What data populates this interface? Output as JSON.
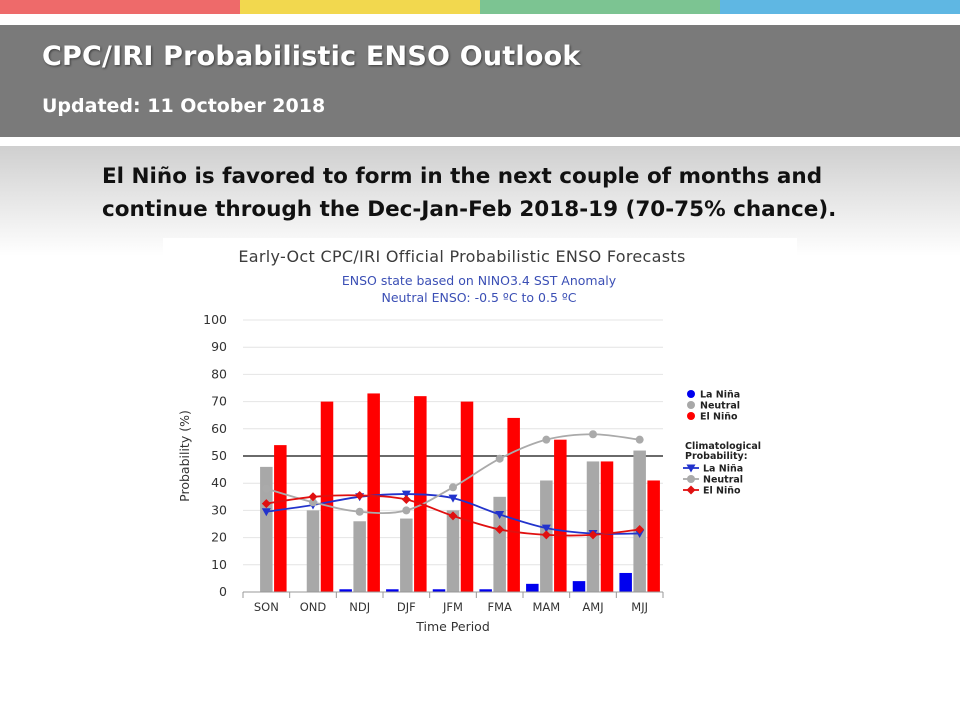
{
  "colors": {
    "stripes": [
      "#ee6a6a",
      "#f2d84e",
      "#7cc492",
      "#5fb7e3"
    ],
    "header_bg": "#7a7a7a",
    "la_nina": "#0000ee",
    "neutral": "#a8a8a8",
    "el_nino": "#ff0000",
    "la_nina_line": "#2233cc",
    "neutral_line": "#aaaaaa",
    "el_nino_line": "#e01010"
  },
  "header": {
    "title": "CPC/IRI Probabilistic ENSO Outlook",
    "updated": "Updated: 11 October 2018"
  },
  "headline": "El Niño is favored to form in the next couple of months and continue through the Dec-Jan-Feb 2018-19 (70-75% chance).",
  "chart_data": {
    "type": "bar",
    "title": "Early-Oct CPC/IRI Official Probabilistic ENSO Forecasts",
    "subtitle": [
      "ENSO state based on NINO3.4 SST Anomaly",
      "Neutral ENSO: -0.5 ºC to 0.5 ºC"
    ],
    "xlabel": "Time Period",
    "ylabel": "Probability (%)",
    "ylim": [
      0,
      100
    ],
    "yticks": [
      0,
      10,
      20,
      30,
      40,
      50,
      60,
      70,
      80,
      90,
      100
    ],
    "reference_line": 50,
    "grid": true,
    "categories": [
      "SON",
      "OND",
      "NDJ",
      "DJF",
      "JFM",
      "FMA",
      "MAM",
      "AMJ",
      "MJJ"
    ],
    "series": [
      {
        "name": "La Niña",
        "values": [
          0,
          0,
          1,
          1,
          1,
          1,
          3,
          4,
          7
        ]
      },
      {
        "name": "Neutral",
        "values": [
          46,
          30,
          26,
          27,
          30,
          35,
          41,
          48,
          52
        ]
      },
      {
        "name": "El Niño",
        "values": [
          54,
          70,
          73,
          72,
          70,
          64,
          56,
          48,
          41
        ]
      }
    ],
    "climatology_label": "Climatological Probability:",
    "climatology": [
      {
        "name": "La Niña",
        "values": [
          29.5,
          32,
          35,
          36,
          34.5,
          28.5,
          23.5,
          21.5,
          21.5
        ]
      },
      {
        "name": "Neutral",
        "values": [
          38,
          33,
          29.5,
          30,
          38.5,
          49,
          56,
          58,
          56
        ]
      },
      {
        "name": "El Niño",
        "values": [
          32.5,
          35,
          35.5,
          34,
          28,
          23,
          21,
          21,
          23
        ]
      }
    ],
    "legend_position": "right"
  }
}
